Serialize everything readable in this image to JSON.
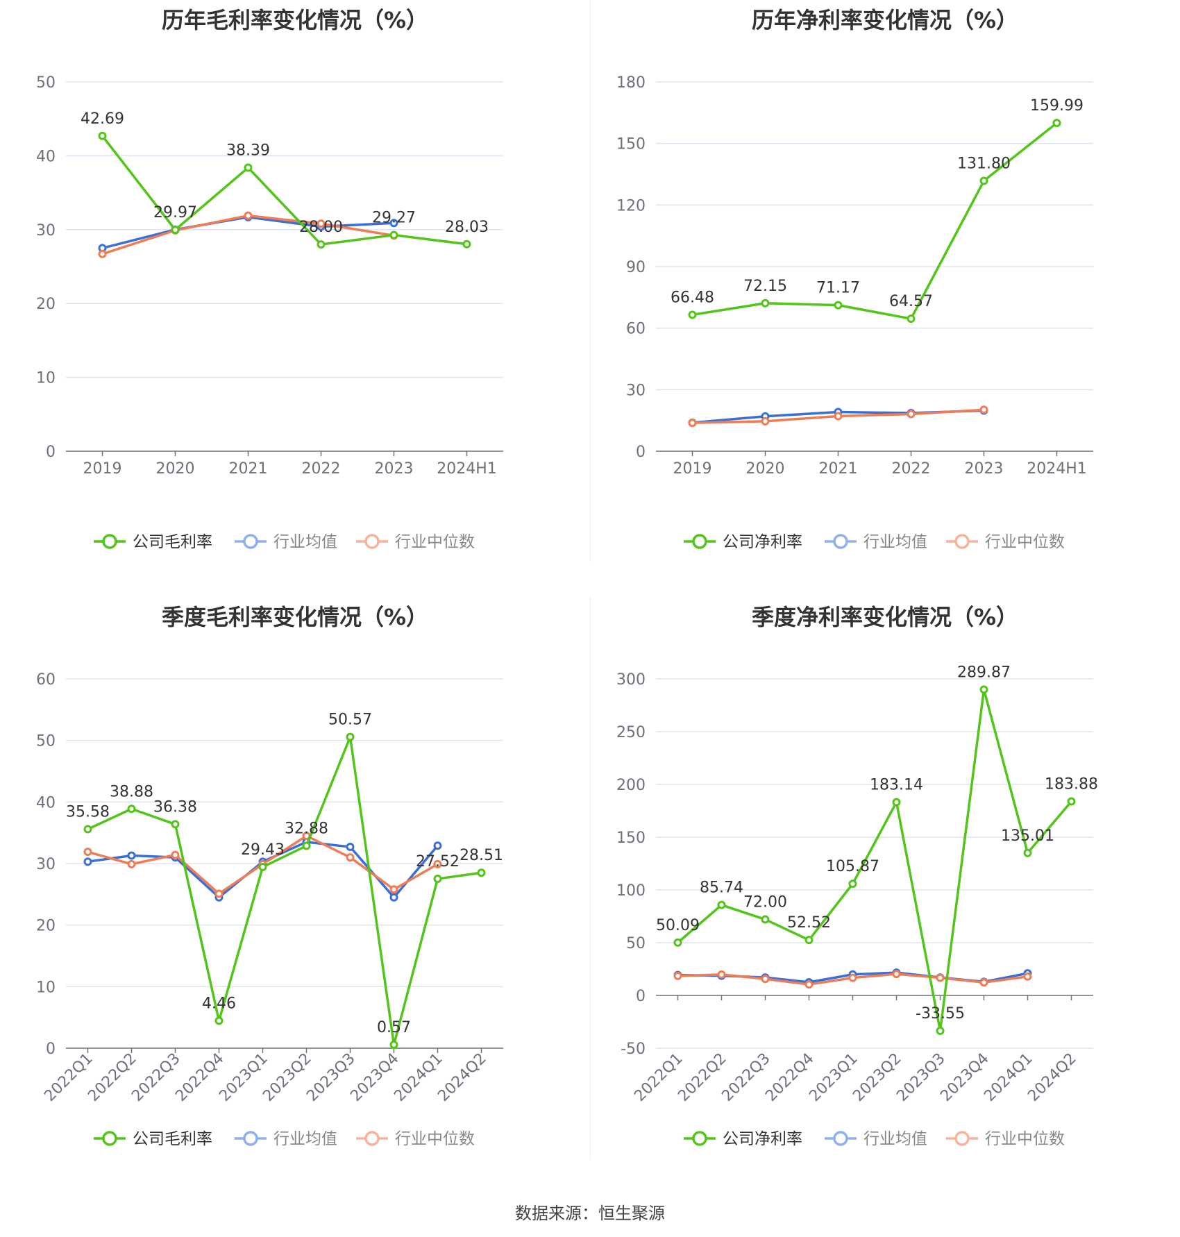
{
  "source_label": "数据来源：恒生聚源",
  "colors": {
    "company": "#52c41a",
    "avg": "#3a6fd8",
    "median": "#ee7c55"
  },
  "chart_data": [
    {
      "type": "line",
      "title": "历年毛利率变化情况（%）",
      "categories": [
        "2019",
        "2020",
        "2021",
        "2022",
        "2023",
        "2024H1"
      ],
      "ylim": [
        0,
        50
      ],
      "yticks": [
        0,
        10,
        20,
        30,
        40,
        50
      ],
      "grid": true,
      "legend_position": "bottom",
      "series": [
        {
          "name": "公司毛利率",
          "key": "company",
          "labels": true,
          "values": [
            42.69,
            29.97,
            38.39,
            28.0,
            29.27,
            28.03
          ]
        },
        {
          "name": "行业均值",
          "key": "avg",
          "labels": false,
          "values": [
            27.5,
            30.0,
            31.7,
            30.4,
            30.9,
            null
          ]
        },
        {
          "name": "行业中位数",
          "key": "median",
          "labels": false,
          "values": [
            26.7,
            29.9,
            31.9,
            30.8,
            29.2,
            null
          ]
        }
      ]
    },
    {
      "type": "line",
      "title": "历年净利率变化情况（%）",
      "categories": [
        "2019",
        "2020",
        "2021",
        "2022",
        "2023",
        "2024H1"
      ],
      "ylim": [
        0,
        180
      ],
      "yticks": [
        0,
        30,
        60,
        90,
        120,
        150,
        180
      ],
      "grid": true,
      "legend_position": "bottom",
      "series": [
        {
          "name": "公司净利率",
          "key": "company",
          "labels": true,
          "values": [
            66.48,
            72.15,
            71.17,
            64.57,
            131.8,
            159.99
          ]
        },
        {
          "name": "行业均值",
          "key": "avg",
          "labels": false,
          "values": [
            13.9,
            17.0,
            19.1,
            18.6,
            19.8,
            null
          ]
        },
        {
          "name": "行业中位数",
          "key": "median",
          "labels": false,
          "values": [
            13.8,
            14.6,
            17.1,
            18.1,
            20.2,
            null
          ]
        }
      ]
    },
    {
      "type": "line",
      "title": "季度毛利率变化情况（%）",
      "categories": [
        "2022Q1",
        "2022Q2",
        "2022Q3",
        "2022Q4",
        "2023Q1",
        "2023Q2",
        "2023Q3",
        "2023Q4",
        "2024Q1",
        "2024Q2"
      ],
      "ylim": [
        0,
        60
      ],
      "yticks": [
        0,
        10,
        20,
        30,
        40,
        50,
        60
      ],
      "grid": true,
      "legend_position": "bottom",
      "series": [
        {
          "name": "公司毛利率",
          "key": "company",
          "labels": true,
          "values": [
            35.58,
            38.88,
            36.38,
            4.46,
            29.43,
            32.88,
            50.57,
            0.57,
            27.52,
            28.51
          ]
        },
        {
          "name": "行业均值",
          "key": "avg",
          "labels": false,
          "values": [
            30.3,
            31.3,
            31.0,
            24.5,
            30.3,
            33.5,
            32.7,
            24.5,
            32.9,
            null
          ]
        },
        {
          "name": "行业中位数",
          "key": "median",
          "labels": false,
          "values": [
            31.9,
            29.9,
            31.4,
            25.1,
            29.9,
            34.5,
            31.0,
            25.8,
            29.9,
            null
          ]
        }
      ]
    },
    {
      "type": "line",
      "title": "季度净利率变化情况（%）",
      "categories": [
        "2022Q1",
        "2022Q2",
        "2022Q3",
        "2022Q4",
        "2023Q1",
        "2023Q2",
        "2023Q3",
        "2023Q4",
        "2024Q1",
        "2024Q2"
      ],
      "ylim": [
        -50,
        300
      ],
      "yticks": [
        -50,
        0,
        50,
        100,
        150,
        200,
        250,
        300
      ],
      "grid": true,
      "legend_position": "bottom",
      "series": [
        {
          "name": "公司净利率",
          "key": "company",
          "labels": true,
          "values": [
            50.09,
            85.74,
            72.0,
            52.52,
            105.87,
            183.14,
            -33.55,
            289.87,
            135.01,
            183.88
          ]
        },
        {
          "name": "行业均值",
          "key": "avg",
          "labels": false,
          "values": [
            19.3,
            18.7,
            17.0,
            12.5,
            19.9,
            21.6,
            17.0,
            12.9,
            21.0,
            null
          ]
        },
        {
          "name": "行业中位数",
          "key": "median",
          "labels": false,
          "values": [
            18.5,
            19.8,
            15.6,
            10.4,
            16.7,
            20.3,
            16.7,
            12.3,
            17.9,
            null
          ]
        }
      ]
    }
  ]
}
